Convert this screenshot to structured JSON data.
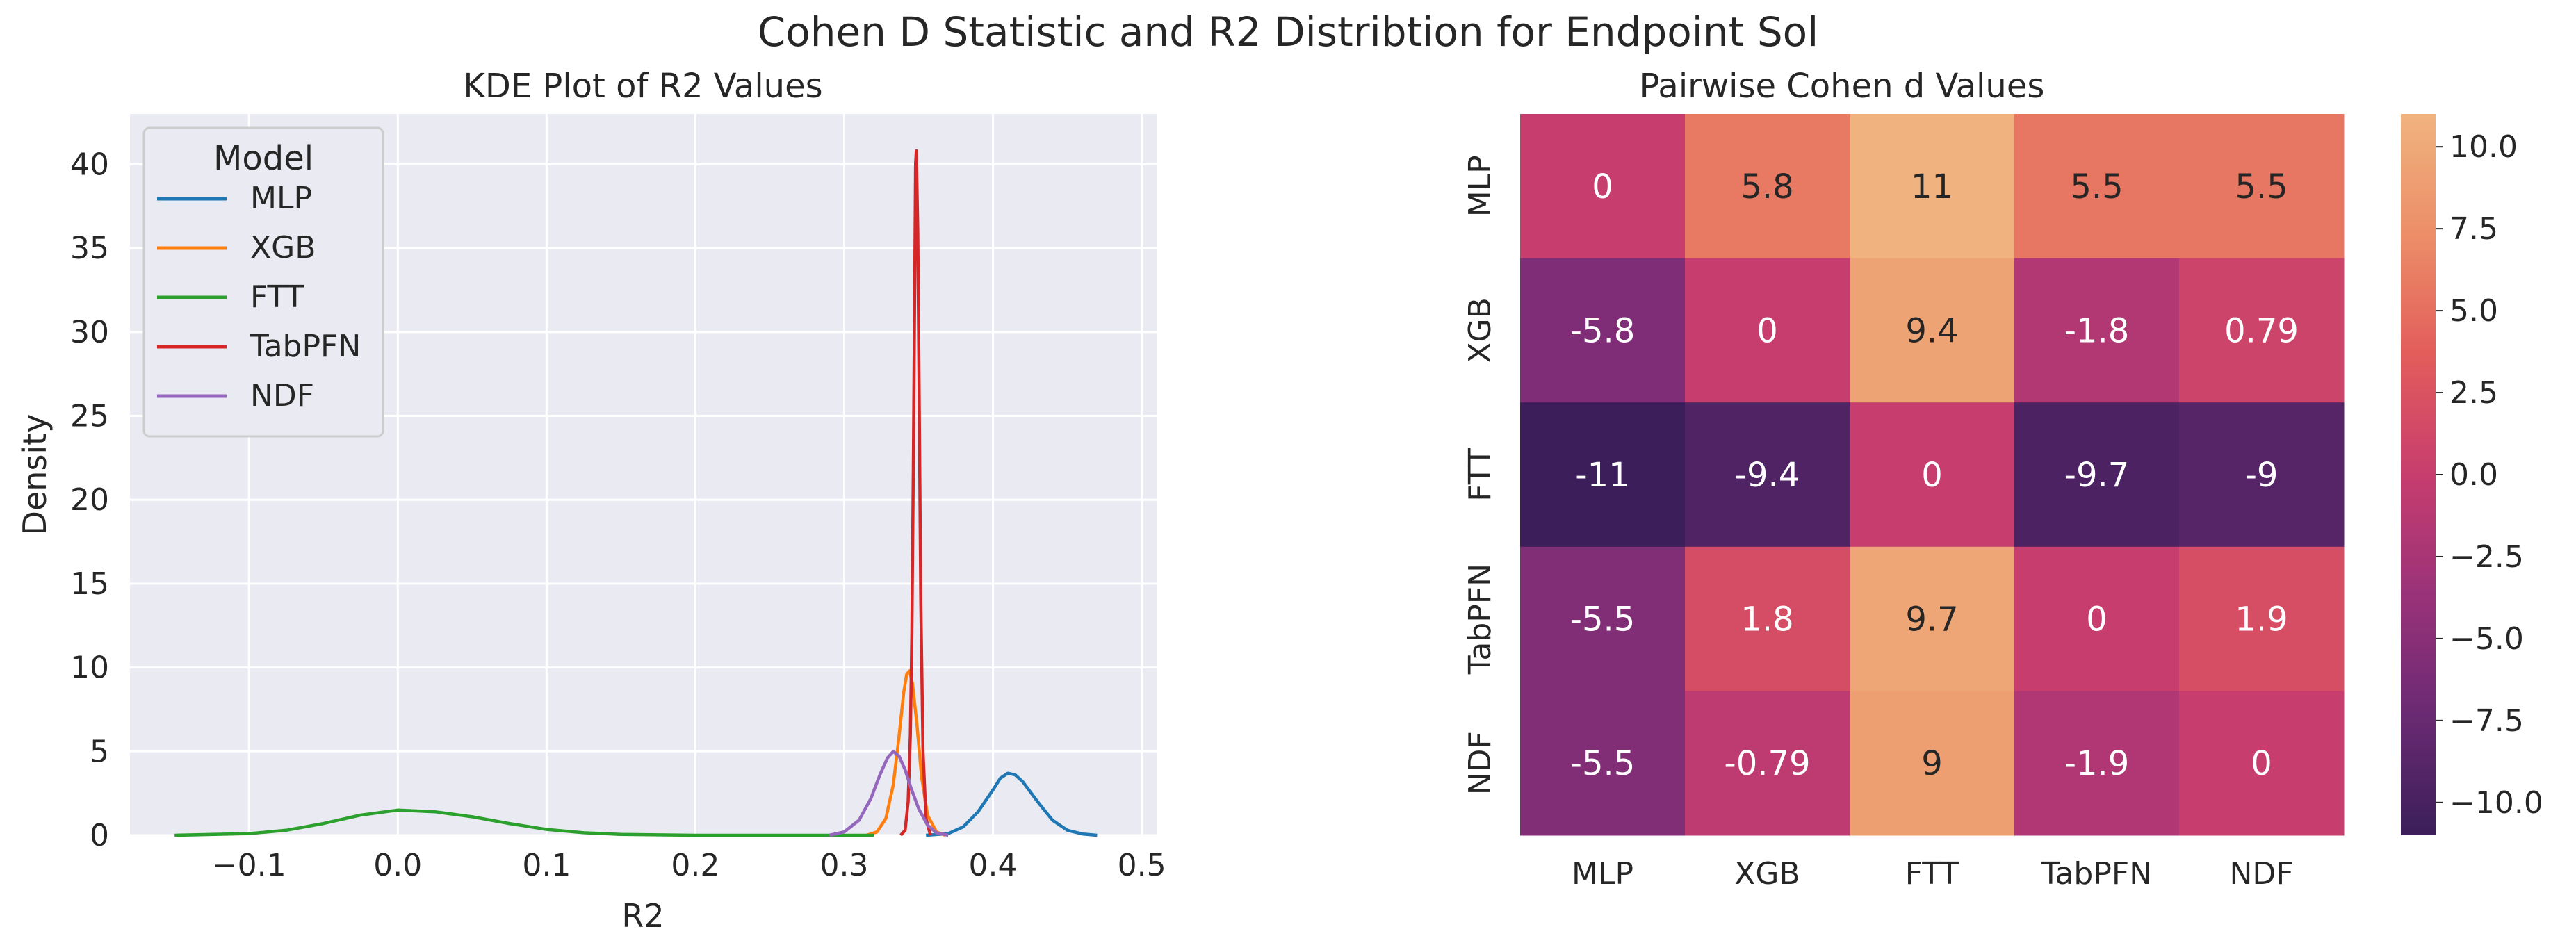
{
  "suptitle": "Cohen D Statistic and R2 Distribtion for Endpoint Sol",
  "chart_data": [
    {
      "type": "line",
      "title": "KDE Plot of R2 Values",
      "xlabel": "R2",
      "ylabel": "Density",
      "xlim": [
        -0.18,
        0.51
      ],
      "ylim": [
        0,
        43
      ],
      "xticks": [
        -0.1,
        0.0,
        0.1,
        0.2,
        0.3,
        0.4,
        0.5
      ],
      "xtick_labels": [
        "−0.1",
        "0.0",
        "0.1",
        "0.2",
        "0.3",
        "0.4",
        "0.5"
      ],
      "yticks": [
        0,
        5,
        10,
        15,
        20,
        25,
        30,
        35,
        40
      ],
      "yticks_labels": [
        "0",
        "5",
        "10",
        "15",
        "20",
        "25",
        "30",
        "35",
        "40"
      ],
      "grid": true,
      "legend": {
        "title": "Model",
        "placement": "top-left"
      },
      "series": [
        {
          "name": "MLP",
          "color": "#1f77b4",
          "x": [
            0.355,
            0.37,
            0.38,
            0.39,
            0.4,
            0.405,
            0.41,
            0.415,
            0.42,
            0.43,
            0.44,
            0.45,
            0.46,
            0.47
          ],
          "y": [
            0.0,
            0.1,
            0.5,
            1.4,
            2.7,
            3.4,
            3.7,
            3.6,
            3.2,
            2.0,
            0.9,
            0.3,
            0.08,
            0.0
          ]
        },
        {
          "name": "XGB",
          "color": "#ff7f0e",
          "x": [
            0.315,
            0.322,
            0.328,
            0.333,
            0.337,
            0.34,
            0.342,
            0.344,
            0.346,
            0.349,
            0.352,
            0.356,
            0.362,
            0.368
          ],
          "y": [
            0.0,
            0.2,
            1.0,
            3.0,
            6.0,
            8.5,
            9.6,
            9.8,
            9.0,
            6.5,
            3.5,
            1.2,
            0.2,
            0.0
          ]
        },
        {
          "name": "FTT",
          "color": "#2ca02c",
          "x": [
            -0.15,
            -0.1,
            -0.075,
            -0.05,
            -0.025,
            0.0,
            0.025,
            0.05,
            0.075,
            0.1,
            0.125,
            0.15,
            0.2,
            0.25,
            0.3,
            0.32
          ],
          "y": [
            0.0,
            0.1,
            0.3,
            0.7,
            1.2,
            1.5,
            1.4,
            1.1,
            0.7,
            0.35,
            0.15,
            0.05,
            0.0,
            0.0,
            0.0,
            0.0
          ]
        },
        {
          "name": "TabPFN",
          "color": "#d62728",
          "x": [
            0.338,
            0.341,
            0.343,
            0.3445,
            0.3455,
            0.3465,
            0.3475,
            0.348,
            0.3485,
            0.3495,
            0.3505,
            0.3515,
            0.353,
            0.355,
            0.358
          ],
          "y": [
            0.0,
            0.3,
            2.0,
            6.0,
            12.0,
            22.0,
            34.0,
            40.0,
            40.8,
            36.0,
            25.0,
            14.0,
            5.0,
            1.0,
            0.0
          ]
        },
        {
          "name": "NDF",
          "color": "#9467bd",
          "x": [
            0.29,
            0.3,
            0.31,
            0.318,
            0.324,
            0.329,
            0.333,
            0.337,
            0.341,
            0.345,
            0.35,
            0.356,
            0.362,
            0.37
          ],
          "y": [
            0.0,
            0.2,
            0.9,
            2.2,
            3.6,
            4.6,
            5.0,
            4.7,
            3.9,
            2.8,
            1.6,
            0.6,
            0.15,
            0.0
          ]
        }
      ]
    },
    {
      "type": "heatmap",
      "title": "Pairwise Cohen d Values",
      "rows": [
        "MLP",
        "XGB",
        "FTT",
        "TabPFN",
        "NDF"
      ],
      "columns": [
        "MLP",
        "XGB",
        "FTT",
        "TabPFN",
        "NDF"
      ],
      "values": [
        [
          0,
          5.8,
          11,
          5.5,
          5.5
        ],
        [
          -5.8,
          0,
          9.4,
          -1.8,
          0.79
        ],
        [
          -11,
          -9.4,
          0,
          -9.7,
          -9
        ],
        [
          -5.5,
          1.8,
          9.7,
          0,
          1.9
        ],
        [
          -5.5,
          -0.79,
          9,
          -1.9,
          0
        ]
      ],
      "cell_labels": [
        [
          "0",
          "5.8",
          "11",
          "5.5",
          "5.5"
        ],
        [
          "-5.8",
          "0",
          "9.4",
          "-1.8",
          "0.79"
        ],
        [
          "-11",
          "-9.4",
          "0",
          "-9.7",
          "-9"
        ],
        [
          "-5.5",
          "1.8",
          "9.7",
          "0",
          "1.9"
        ],
        [
          "-5.5",
          "-0.79",
          "9",
          "-1.9",
          "0"
        ]
      ],
      "colorbar": {
        "vmin": -11,
        "vmax": 11,
        "ticks": [
          10.0,
          7.5,
          5.0,
          2.5,
          0.0,
          -2.5,
          -5.0,
          -7.5,
          -10.0
        ],
        "tick_labels": [
          "10.0",
          "7.5",
          "5.0",
          "2.5",
          "0.0",
          "−2.5",
          "−5.0",
          "−7.5",
          "−10.0"
        ],
        "colormap": "flare",
        "stops": [
          "#3b1e5a",
          "#6a2a73",
          "#9a3279",
          "#c73d6e",
          "#e25d5b",
          "#ec8e68",
          "#f0b37f"
        ]
      }
    }
  ],
  "colors": {
    "axes_background": "#eaeaf2",
    "grid": "#ffffff",
    "text": "#262626"
  }
}
